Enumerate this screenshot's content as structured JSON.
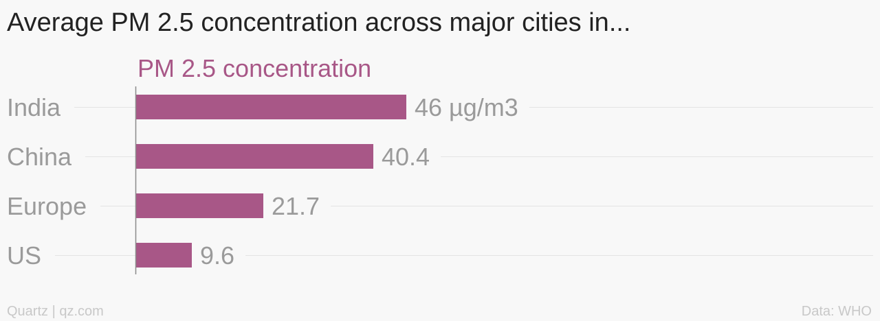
{
  "title": "Average PM 2.5 concentration across major cities in...",
  "footer": {
    "source_left": "Quartz | qz.com",
    "source_right": "Data: WHO"
  },
  "colors": {
    "bar": "#a85787",
    "series_label": "#a85787",
    "text_muted": "#9a9a9a",
    "gridline": "#e4e4e4",
    "axis": "#8a8a8a",
    "background": "#f8f8f8"
  },
  "chart_data": {
    "type": "bar",
    "orientation": "horizontal",
    "title": "Average PM 2.5 concentration across major cities in...",
    "categories": [
      "India",
      "China",
      "Europe",
      "US"
    ],
    "series": [
      {
        "name": "PM 2.5 concentration",
        "values": [
          46,
          40.4,
          21.7,
          9.6
        ],
        "value_labels": [
          "46 µg/m3",
          "40.4",
          "21.7",
          "9.6"
        ]
      }
    ],
    "xlim": [
      0,
      46
    ],
    "grid": true,
    "legend": "top-left"
  }
}
